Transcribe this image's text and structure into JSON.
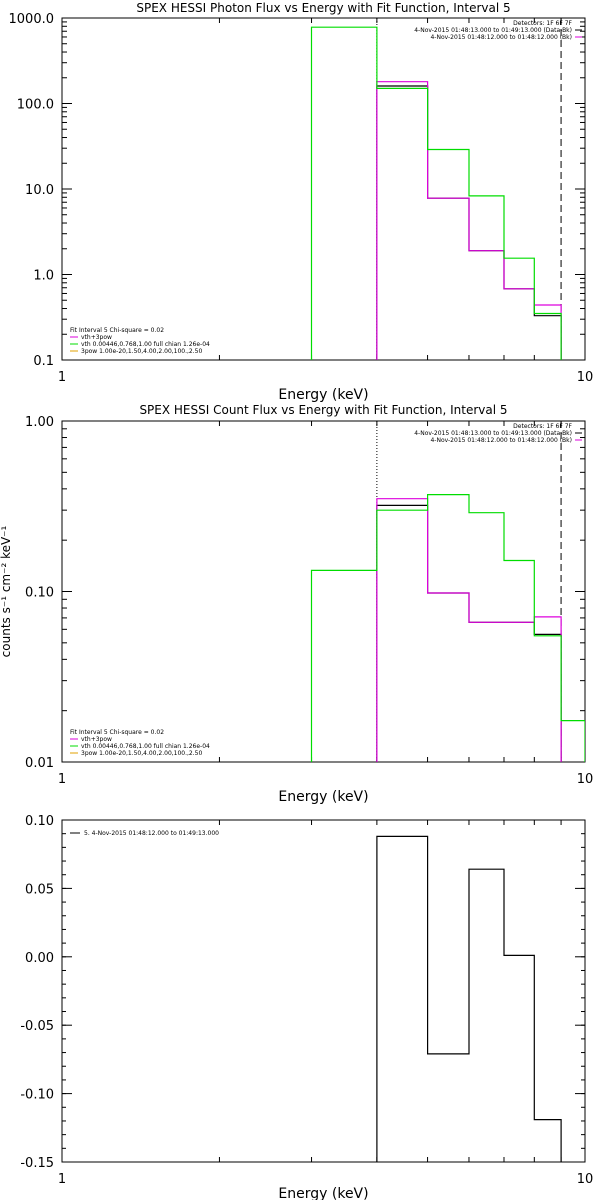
{
  "colors": {
    "black": "#000000",
    "green": "#00dd00",
    "magenta": "#dd00dd",
    "orange": "#e0a000"
  },
  "chart_data": [
    {
      "type": "line",
      "title": "SPEX HESSI Photon Flux vs Energy with Fit Function, Interval 5",
      "xlabel": "Energy (keV)",
      "ylabel": "",
      "xscale": "log",
      "yscale": "log",
      "xlim": [
        1,
        10
      ],
      "ylim": [
        0.1,
        1000
      ],
      "xticks": [
        {
          "v": 1,
          "label": "1"
        },
        {
          "v": 10,
          "label": "10"
        }
      ],
      "yticks": [
        {
          "v": 1000,
          "label": "1000.0"
        },
        {
          "v": 100,
          "label": "100.0"
        },
        {
          "v": 10,
          "label": "10.0"
        },
        {
          "v": 1,
          "label": "1.0"
        },
        {
          "v": 0.1,
          "label": "0.1"
        }
      ],
      "vlines": [
        {
          "x": 4.0,
          "style": "dotted"
        },
        {
          "x": 9.0,
          "style": "dashed"
        }
      ],
      "legend_top_right": [
        {
          "text": "Detectors: 1F 6F 7F",
          "color": "black"
        },
        {
          "text": "4-Nov-2015 01:48:13.000 to 01:49:13.000 (Data-Bk)",
          "color": "black"
        },
        {
          "text": "4-Nov-2015 01:48:12.000 to 01:48:12.000 (Bk)",
          "color": "magenta"
        }
      ],
      "legend_bottom_left": [
        {
          "text": "Fit Interval 5   Chi-square = 0.02",
          "color": "black"
        },
        {
          "text": "vth+3pow",
          "color": "magenta"
        },
        {
          "text": "vth 0.00446,0.768,1.00  full chian 1.26e-04",
          "color": "green"
        },
        {
          "text": "3pow 1.00e-20,1.50,4.00,2.00,100.,2.50",
          "color": "orange"
        }
      ],
      "series": [
        {
          "color": "black",
          "edges": [
            4.0,
            5.0,
            6.0,
            7.0,
            8.0,
            9.0
          ],
          "values": [
            160,
            7.8,
            1.9,
            0.68,
            0.33
          ]
        },
        {
          "color": "magenta",
          "edges": [
            4.0,
            5.0,
            6.0,
            7.0,
            8.0,
            9.0
          ],
          "values": [
            180,
            7.8,
            1.9,
            0.68,
            0.44
          ]
        },
        {
          "color": "green",
          "edges": [
            3.0,
            4.0,
            5.0,
            6.0,
            7.0,
            8.0,
            9.0
          ],
          "values": [
            780,
            150,
            29,
            8.3,
            1.55,
            0.35
          ]
        }
      ]
    },
    {
      "type": "line",
      "title": "SPEX HESSI Count Flux vs Energy with Fit Function, Interval 5",
      "xlabel": "Energy (keV)",
      "ylabel": "counts s⁻¹ cm⁻² keV⁻¹",
      "xscale": "log",
      "yscale": "log",
      "xlim": [
        1,
        10
      ],
      "ylim": [
        0.01,
        1.0
      ],
      "xticks": [
        {
          "v": 1,
          "label": "1"
        },
        {
          "v": 10,
          "label": "10"
        }
      ],
      "yticks": [
        {
          "v": 1.0,
          "label": "1.00"
        },
        {
          "v": 0.1,
          "label": "0.10"
        },
        {
          "v": 0.01,
          "label": "0.01"
        }
      ],
      "vlines": [
        {
          "x": 4.0,
          "style": "dotted"
        },
        {
          "x": 9.0,
          "style": "dashed"
        }
      ],
      "legend_top_right": [
        {
          "text": "Detectors: 1F 6F 7F",
          "color": "black"
        },
        {
          "text": "4-Nov-2015 01:48:13.000 to 01:49:13.000 (Data-Bk)",
          "color": "black"
        },
        {
          "text": "4-Nov-2015 01:48:12.000 to 01:48:12.000 (Bk)",
          "color": "magenta"
        }
      ],
      "legend_bottom_left": [
        {
          "text": "Fit Interval 5   Chi-square = 0.02",
          "color": "black"
        },
        {
          "text": "vth+3pow",
          "color": "magenta"
        },
        {
          "text": "vth 0.00446,0.768,1.00  full chian 1.26e-04",
          "color": "green"
        },
        {
          "text": "3pow 1.00e-20,1.50,4.00,2.00,100.,2.50",
          "color": "orange"
        }
      ],
      "series": [
        {
          "color": "black",
          "edges": [
            4.0,
            5.0,
            6.0,
            7.0,
            8.0,
            9.0
          ],
          "values": [
            0.32,
            0.098,
            0.066,
            0.066,
            0.056
          ]
        },
        {
          "color": "magenta",
          "edges": [
            4.0,
            5.0,
            6.0,
            7.0,
            8.0,
            9.0
          ],
          "values": [
            0.35,
            0.098,
            0.066,
            0.066,
            0.071
          ]
        },
        {
          "color": "green",
          "edges": [
            3.0,
            4.0,
            5.0,
            6.0,
            7.0,
            8.0,
            9.0,
            10.0
          ],
          "values": [
            0.133,
            0.3,
            0.37,
            0.29,
            0.152,
            0.055,
            0.0175
          ]
        }
      ]
    },
    {
      "type": "line",
      "title": "",
      "xlabel": "Energy (keV)",
      "ylabel": "",
      "xscale": "log",
      "yscale": "linear",
      "xlim": [
        1,
        10
      ],
      "ylim": [
        -0.15,
        0.1
      ],
      "xticks": [
        {
          "v": 1,
          "label": "1"
        },
        {
          "v": 10,
          "label": "10"
        }
      ],
      "yticks": [
        {
          "v": 0.1,
          "label": "0.10"
        },
        {
          "v": 0.05,
          "label": "0.05"
        },
        {
          "v": 0.0,
          "label": "0.00"
        },
        {
          "v": -0.05,
          "label": "-0.05"
        },
        {
          "v": -0.1,
          "label": "-0.10"
        },
        {
          "v": -0.15,
          "label": "-0.15"
        }
      ],
      "vlines": [],
      "legend_top_left": [
        {
          "text": "5.  4-Nov-2015 01:48:12.000 to 01:49:13.000",
          "color": "black"
        }
      ],
      "series": [
        {
          "color": "black",
          "edges": [
            4.0,
            5.0,
            6.0,
            7.0,
            8.0,
            9.0
          ],
          "values": [
            0.088,
            -0.071,
            0.064,
            0.001,
            -0.119
          ]
        }
      ]
    }
  ]
}
